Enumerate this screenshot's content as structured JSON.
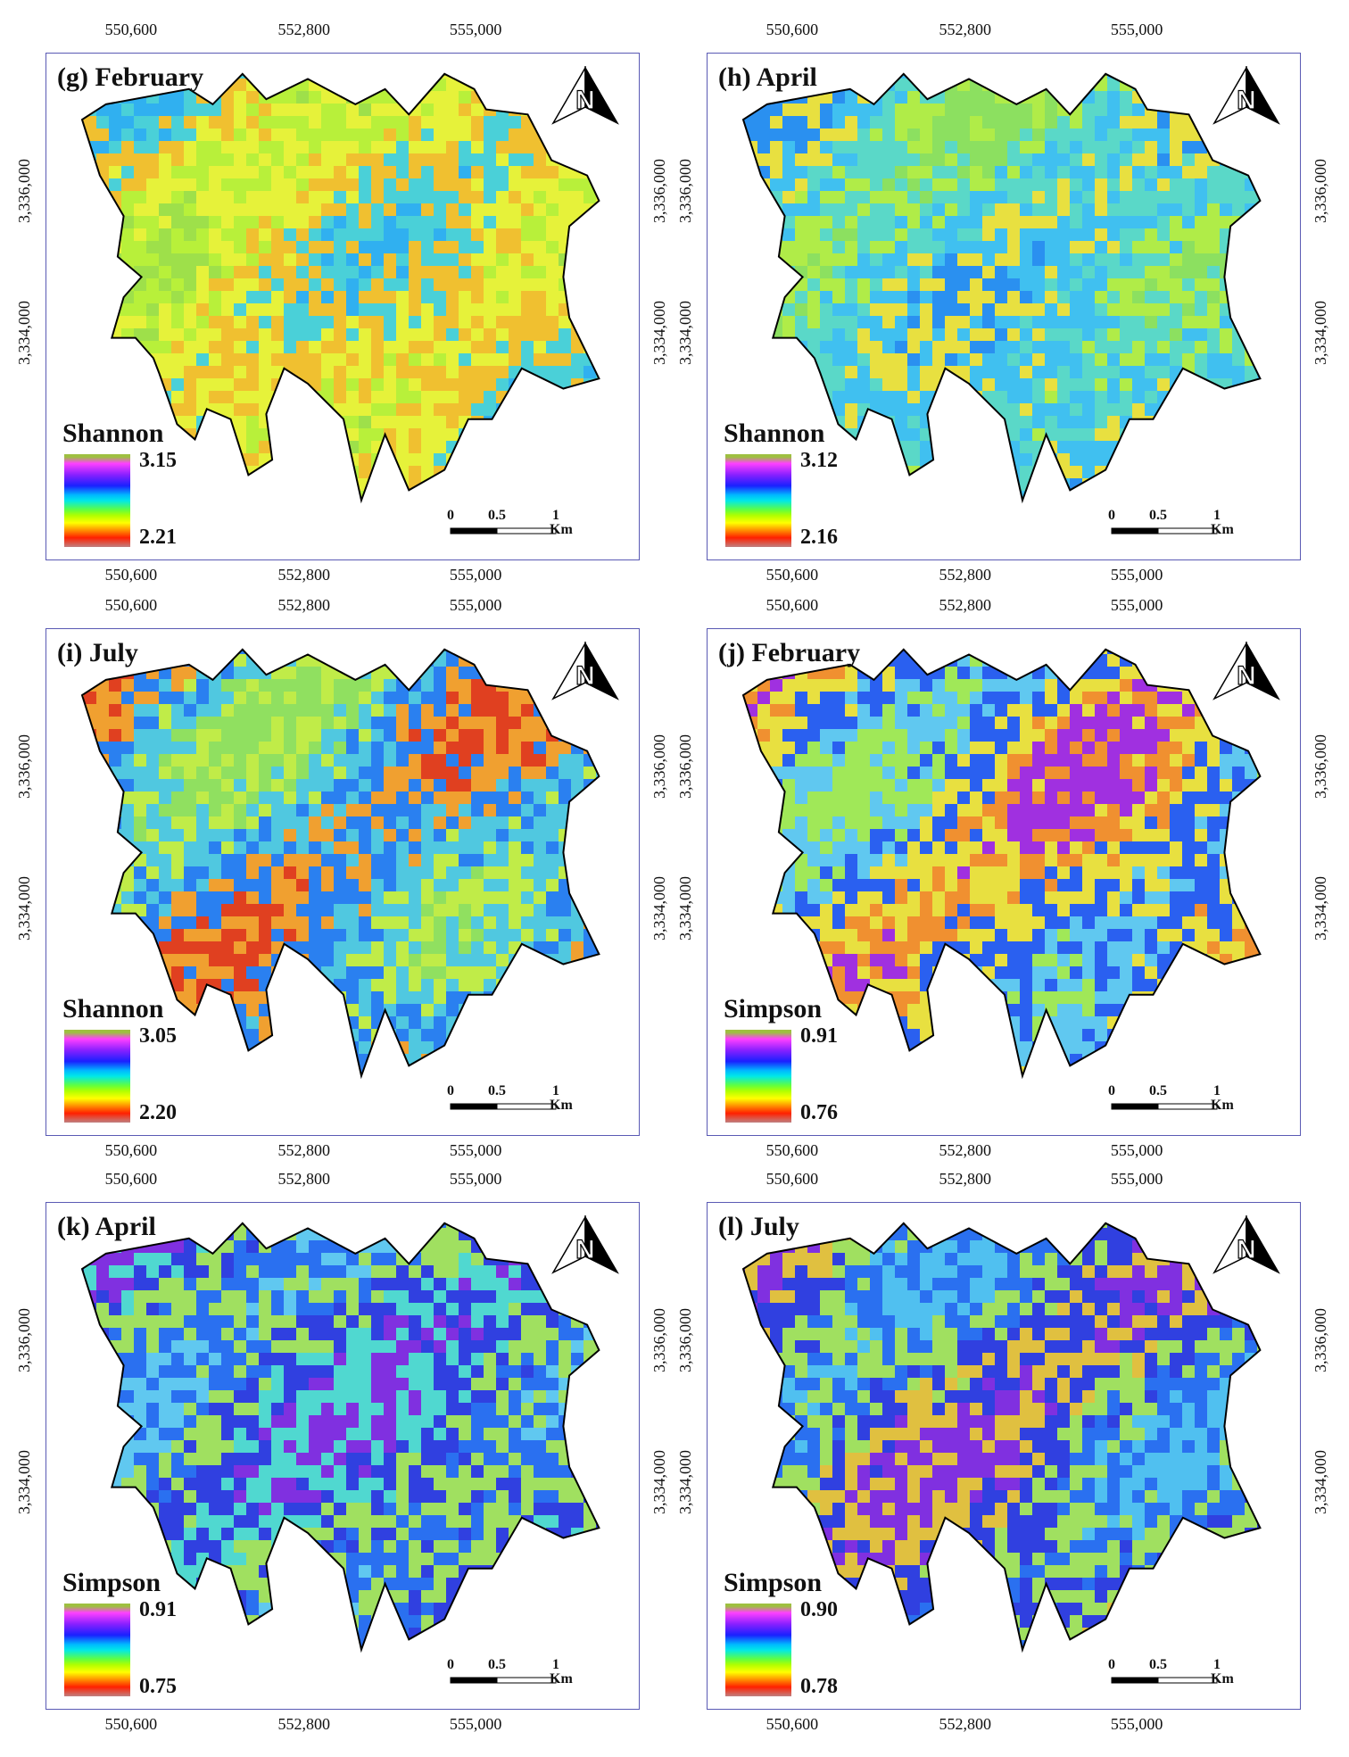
{
  "x_ticks": [
    "550,600",
    "552,800",
    "555,000"
  ],
  "y_ticks": [
    "3,336,000",
    "3,334,000"
  ],
  "scale": {
    "zero": "0",
    "half": "0.5",
    "one": "1",
    "unit": "Km"
  },
  "colors": {
    "frame": "#5a5ab4",
    "outline": "#000000"
  },
  "icons": {
    "north_arrow": "north-arrow-icon"
  },
  "panels": [
    {
      "title": "(g) February",
      "legend_title": "Shannon",
      "legend_max": "3.15",
      "legend_min": "2.21",
      "palette": [
        "#9ee04a",
        "#b8f03a",
        "#e6f23a",
        "#f0c030",
        "#4ad0d8",
        "#30b0f0"
      ]
    },
    {
      "title": "(h) April",
      "legend_title": "Shannon",
      "legend_max": "3.12",
      "legend_min": "2.16",
      "palette": [
        "#8ce060",
        "#b0ec48",
        "#5ad8c8",
        "#40c0f0",
        "#e8e040",
        "#2a90f0"
      ]
    },
    {
      "title": "(i) July",
      "legend_title": "Shannon",
      "legend_max": "3.05",
      "legend_min": "2.20",
      "palette": [
        "#90e060",
        "#c0ec48",
        "#50c8e0",
        "#2a80f0",
        "#f0a030",
        "#e04020"
      ]
    },
    {
      "title": "(j) February",
      "legend_title": "Simpson",
      "legend_max": "0.91",
      "legend_min": "0.76",
      "palette": [
        "#a0e858",
        "#60c8f0",
        "#2a60f0",
        "#e8e040",
        "#f09030",
        "#a030e0"
      ]
    },
    {
      "title": "(k) April",
      "legend_title": "Simpson",
      "legend_max": "0.91",
      "legend_min": "0.75",
      "palette": [
        "#60c8f0",
        "#2a70f0",
        "#a0e060",
        "#3040e0",
        "#50d8d0",
        "#8030e0"
      ]
    },
    {
      "title": "(l) July",
      "legend_title": "Simpson",
      "legend_max": "0.90",
      "legend_min": "0.78",
      "palette": [
        "#50c0f0",
        "#2a70f0",
        "#a0e060",
        "#3040e0",
        "#e0c040",
        "#8030e0"
      ]
    }
  ]
}
